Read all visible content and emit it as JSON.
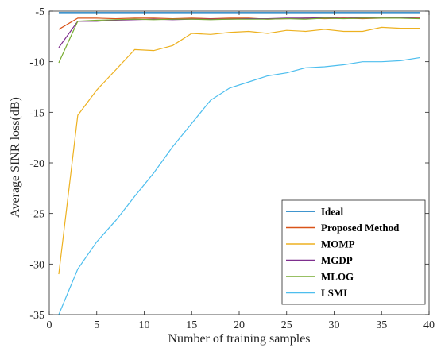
{
  "chart_data": {
    "type": "line",
    "title": "",
    "xlabel": "Number of training samples",
    "ylabel": "Average SINR loss(dB)",
    "xlim": [
      0,
      40
    ],
    "ylim": [
      -35,
      -5
    ],
    "xticks": [
      0,
      5,
      10,
      15,
      20,
      25,
      30,
      35,
      40
    ],
    "yticks": [
      -35,
      -30,
      -25,
      -20,
      -15,
      -10,
      -5
    ],
    "grid": false,
    "legend_position": "bottom-right",
    "series": [
      {
        "name": "Ideal",
        "color": "#0072BD",
        "x": [
          1,
          3,
          5,
          7,
          9,
          11,
          13,
          15,
          17,
          19,
          21,
          23,
          25,
          27,
          29,
          31,
          33,
          35,
          37,
          39
        ],
        "y": [
          -5.15,
          -5.15,
          -5.15,
          -5.15,
          -5.15,
          -5.15,
          -5.15,
          -5.15,
          -5.15,
          -5.15,
          -5.15,
          -5.15,
          -5.15,
          -5.15,
          -5.15,
          -5.15,
          -5.15,
          -5.15,
          -5.15,
          -5.15
        ]
      },
      {
        "name": "Proposed Method",
        "color": "#D95319",
        "x": [
          1,
          3,
          5,
          7,
          9,
          11,
          13,
          15,
          17,
          19,
          21,
          23,
          25,
          27,
          29,
          31,
          33,
          35,
          37,
          39
        ],
        "y": [
          -6.8,
          -5.7,
          -5.7,
          -5.75,
          -5.7,
          -5.7,
          -5.75,
          -5.7,
          -5.75,
          -5.7,
          -5.7,
          -5.8,
          -5.75,
          -5.7,
          -5.75,
          -5.7,
          -5.75,
          -5.7,
          -5.7,
          -5.7
        ]
      },
      {
        "name": "MOMP",
        "color": "#EDB120",
        "x": [
          1,
          3,
          5,
          7,
          9,
          11,
          13,
          15,
          17,
          19,
          21,
          23,
          25,
          27,
          29,
          31,
          33,
          35,
          37,
          39
        ],
        "y": [
          -31.0,
          -15.3,
          -12.8,
          -10.8,
          -8.8,
          -8.9,
          -8.4,
          -7.2,
          -7.3,
          -7.1,
          -7.0,
          -7.2,
          -6.9,
          -7.0,
          -6.8,
          -7.0,
          -7.0,
          -6.6,
          -6.7,
          -6.7
        ]
      },
      {
        "name": "MGDP",
        "color": "#7E2F8E",
        "x": [
          1,
          3,
          5,
          7,
          9,
          11,
          13,
          15,
          17,
          19,
          21,
          23,
          25,
          27,
          29,
          31,
          33,
          35,
          37,
          39
        ],
        "y": [
          -8.6,
          -6.0,
          -6.0,
          -5.9,
          -5.85,
          -5.8,
          -5.85,
          -5.8,
          -5.8,
          -5.8,
          -5.75,
          -5.75,
          -5.7,
          -5.7,
          -5.65,
          -5.6,
          -5.65,
          -5.6,
          -5.65,
          -5.6
        ]
      },
      {
        "name": "MLOG",
        "color": "#77AC30",
        "x": [
          1,
          3,
          5,
          7,
          9,
          11,
          13,
          15,
          17,
          19,
          21,
          23,
          25,
          27,
          29,
          31,
          33,
          35,
          37,
          39
        ],
        "y": [
          -10.1,
          -6.0,
          -5.9,
          -5.85,
          -5.8,
          -5.85,
          -5.8,
          -5.8,
          -5.85,
          -5.8,
          -5.8,
          -5.8,
          -5.75,
          -5.8,
          -5.7,
          -5.75,
          -5.7,
          -5.7,
          -5.7,
          -5.75
        ]
      },
      {
        "name": "LSMI",
        "color": "#4DBEEE",
        "x": [
          1,
          3,
          5,
          7,
          9,
          11,
          13,
          15,
          17,
          19,
          21,
          23,
          25,
          27,
          29,
          31,
          33,
          35,
          37,
          39
        ],
        "y": [
          -35.0,
          -30.5,
          -27.8,
          -25.7,
          -23.3,
          -21.0,
          -18.4,
          -16.1,
          -13.8,
          -12.6,
          -12.0,
          -11.4,
          -11.1,
          -10.6,
          -10.5,
          -10.3,
          -10.0,
          -10.0,
          -9.9,
          -9.6
        ]
      }
    ]
  }
}
